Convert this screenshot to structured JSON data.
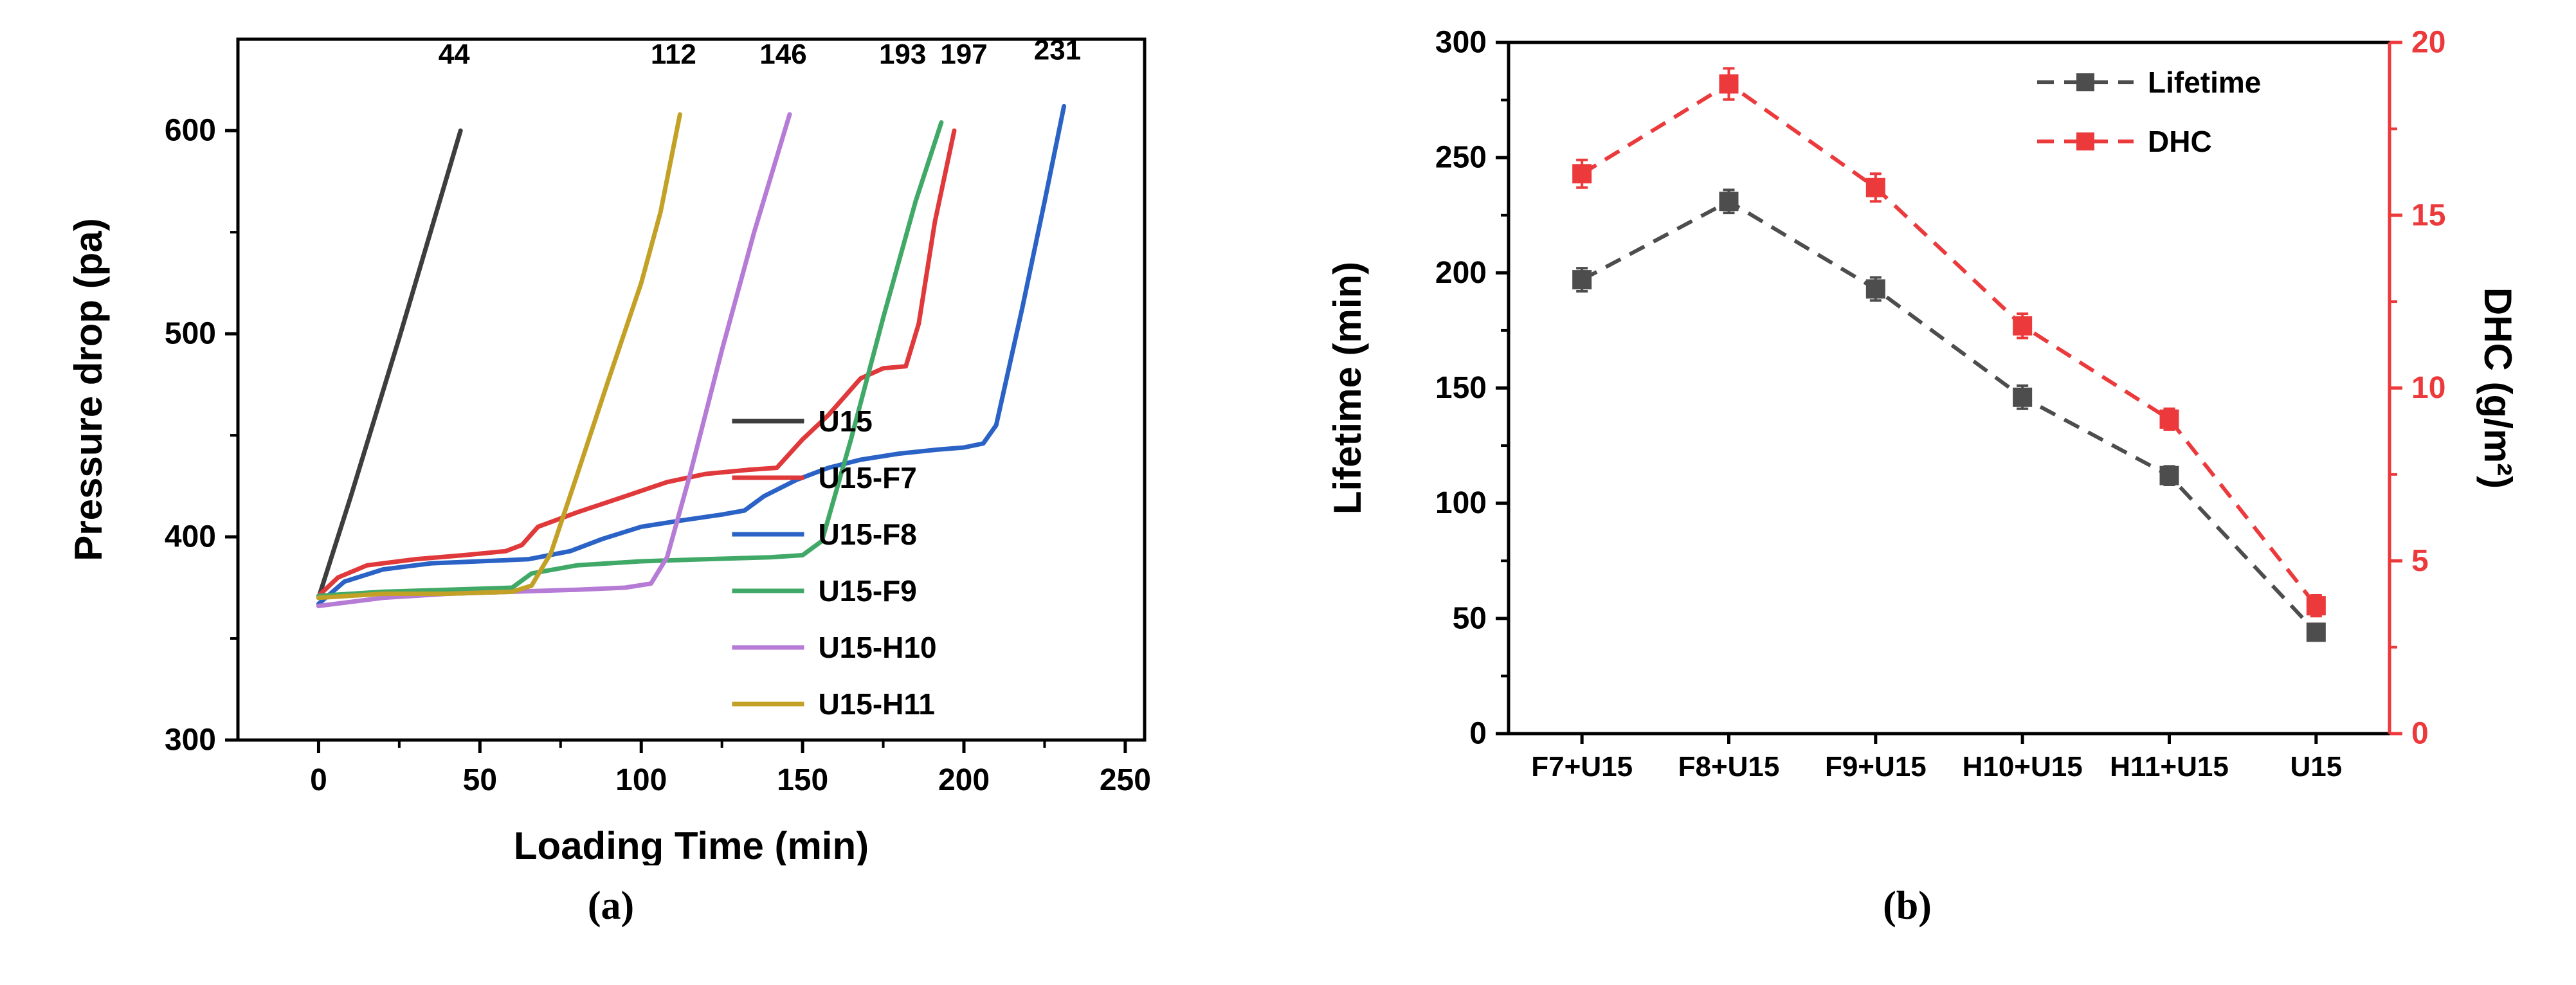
{
  "captions": {
    "a": "(a)",
    "b": "(b)"
  },
  "chart_data": [
    {
      "id": "pressure-drop",
      "type": "line",
      "title": "",
      "xlabel": "Loading Time (min)",
      "ylabel": "Pressure drop (pa)",
      "xlim": [
        -25,
        256
      ],
      "ylim": [
        300,
        645
      ],
      "xticks": [
        0,
        50,
        100,
        150,
        200,
        250
      ],
      "yticks": [
        300,
        400,
        500,
        600
      ],
      "x_minor_step": 25,
      "y_minor_step": 50,
      "grid": false,
      "legend_position": "bottom-right-inside",
      "series": [
        {
          "name": "U15",
          "color": "#3d3d3d",
          "points": [
            [
              0,
              370
            ],
            [
              10,
              420
            ],
            [
              25,
              498
            ],
            [
              44,
              600
            ]
          ]
        },
        {
          "name": "U15-F7",
          "color": "#e0393b",
          "points": [
            [
              0,
              371
            ],
            [
              6,
              380
            ],
            [
              15,
              386
            ],
            [
              30,
              389
            ],
            [
              45,
              391
            ],
            [
              58,
              393
            ],
            [
              63,
              396
            ],
            [
              68,
              405
            ],
            [
              80,
              412
            ],
            [
              95,
              420
            ],
            [
              108,
              427
            ],
            [
              120,
              431
            ],
            [
              133,
              433
            ],
            [
              142,
              434
            ],
            [
              150,
              448
            ],
            [
              158,
              460
            ],
            [
              168,
              478
            ],
            [
              175,
              483
            ],
            [
              182,
              484
            ],
            [
              186,
              505
            ],
            [
              191,
              555
            ],
            [
              197,
              600
            ]
          ]
        },
        {
          "name": "U15-F8",
          "color": "#2b62c5",
          "points": [
            [
              0,
              367
            ],
            [
              8,
              378
            ],
            [
              20,
              384
            ],
            [
              35,
              387
            ],
            [
              50,
              388
            ],
            [
              65,
              389
            ],
            [
              78,
              393
            ],
            [
              88,
              399
            ],
            [
              100,
              405
            ],
            [
              112,
              408
            ],
            [
              125,
              411
            ],
            [
              132,
              413
            ],
            [
              138,
              420
            ],
            [
              148,
              428
            ],
            [
              158,
              434
            ],
            [
              168,
              438
            ],
            [
              180,
              441
            ],
            [
              192,
              443
            ],
            [
              200,
              444
            ],
            [
              206,
              446
            ],
            [
              210,
              455
            ],
            [
              218,
              512
            ],
            [
              225,
              565
            ],
            [
              231,
              612
            ]
          ]
        },
        {
          "name": "U15-F9",
          "color": "#41a968",
          "points": [
            [
              0,
              371
            ],
            [
              20,
              373
            ],
            [
              40,
              374
            ],
            [
              60,
              375
            ],
            [
              66,
              382
            ],
            [
              80,
              386
            ],
            [
              100,
              388
            ],
            [
              120,
              389
            ],
            [
              140,
              390
            ],
            [
              150,
              391
            ],
            [
              156,
              398
            ],
            [
              165,
              448
            ],
            [
              175,
              508
            ],
            [
              185,
              565
            ],
            [
              193,
              604
            ]
          ]
        },
        {
          "name": "U15-H10",
          "color": "#b57bd5",
          "points": [
            [
              0,
              366
            ],
            [
              20,
              370
            ],
            [
              40,
              372
            ],
            [
              60,
              373
            ],
            [
              80,
              374
            ],
            [
              95,
              375
            ],
            [
              103,
              377
            ],
            [
              108,
              390
            ],
            [
              115,
              430
            ],
            [
              125,
              492
            ],
            [
              135,
              550
            ],
            [
              146,
              608
            ]
          ]
        },
        {
          "name": "U15-H11",
          "color": "#c2a126",
          "points": [
            [
              0,
              370
            ],
            [
              20,
              372
            ],
            [
              40,
              372
            ],
            [
              60,
              373
            ],
            [
              66,
              376
            ],
            [
              72,
              392
            ],
            [
              80,
              430
            ],
            [
              90,
              478
            ],
            [
              100,
              525
            ],
            [
              106,
              560
            ],
            [
              112,
              608
            ]
          ]
        }
      ],
      "annotations": [
        {
          "text": "44",
          "x": 42,
          "y": 633
        },
        {
          "text": "112",
          "x": 110,
          "y": 633
        },
        {
          "text": "146",
          "x": 144,
          "y": 633
        },
        {
          "text": "193",
          "x": 181,
          "y": 633
        },
        {
          "text": "197",
          "x": 200,
          "y": 633
        },
        {
          "text": "231",
          "x": 229,
          "y": 635
        }
      ]
    },
    {
      "id": "lifetime-dhc",
      "type": "scatter",
      "title": "",
      "categories": [
        "F7+U15",
        "F8+U15",
        "F9+U15",
        "H10+U15",
        "H11+U15",
        "U15"
      ],
      "left_axis": {
        "label": "Lifetime (min)",
        "lim": [
          0,
          300
        ],
        "ticks": [
          0,
          50,
          100,
          150,
          200,
          250,
          300
        ],
        "minor_step": 25,
        "color": "#000000"
      },
      "right_axis": {
        "label": "DHC (g/m²)",
        "lim": [
          0,
          20
        ],
        "ticks": [
          0,
          5,
          10,
          15,
          20
        ],
        "minor_step": 2.5,
        "color": "#ec3a3c"
      },
      "legend_position": "top-right-inside",
      "series": [
        {
          "name": "Lifetime",
          "axis": "left",
          "color": "#4d4d4d",
          "marker": "square",
          "line_style": "dashed",
          "values": [
            197,
            231,
            193,
            146,
            112,
            44
          ],
          "errors": [
            5,
            5,
            5,
            5,
            4,
            3
          ]
        },
        {
          "name": "DHC",
          "axis": "right",
          "color": "#ec3a3c",
          "marker": "square",
          "line_style": "dashed",
          "values": [
            16.2,
            18.8,
            15.8,
            11.8,
            9.1,
            3.7
          ],
          "errors": [
            0.4,
            0.45,
            0.4,
            0.35,
            0.3,
            0.3
          ]
        }
      ]
    }
  ]
}
